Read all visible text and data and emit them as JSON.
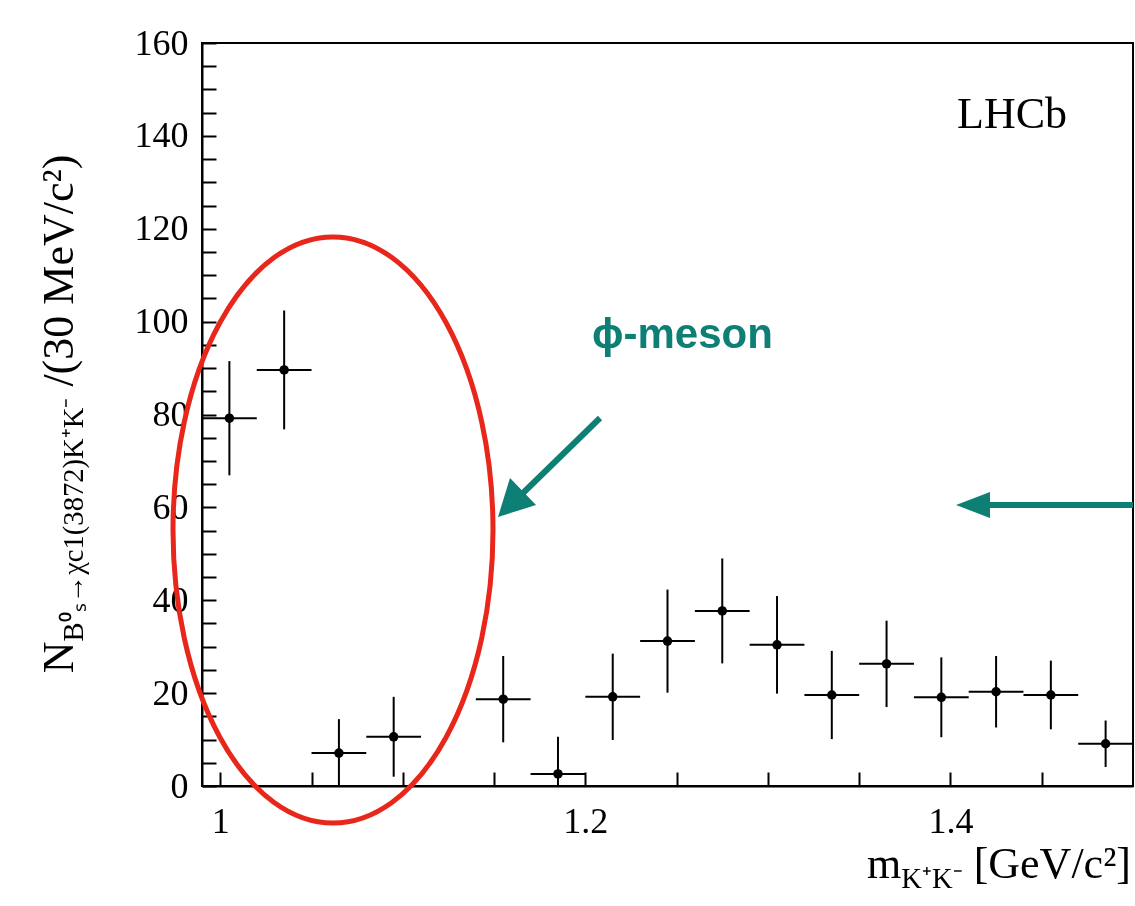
{
  "chart_data": {
    "type": "scatter",
    "xlabel": "m$_{K⁺K⁻}$  [GeV/c²]",
    "ylabel": "N$_{B⁰ₛ→χc1(3872)K⁺K⁻}$ /(30 MeV/c²)",
    "x": [
      1.005,
      1.035,
      1.065,
      1.095,
      1.155,
      1.185,
      1.215,
      1.245,
      1.275,
      1.305,
      1.335,
      1.365,
      1.395,
      1.425,
      1.455,
      1.485
    ],
    "series": [
      {
        "color": "#000000",
        "values": [
          79.2,
          89.6,
          7.1,
          10.6,
          18.7,
          2.6,
          19.2,
          31.2,
          37.7,
          30.4,
          19.6,
          26.3,
          19.1,
          20.3,
          19.6,
          9.1
        ],
        "errors": [
          12.3,
          12.8,
          [
            0,
            14.4
          ],
          8.6,
          9.3,
          [
            0,
            10.6
          ],
          9.3,
          11.1,
          11.3,
          10.5,
          9.5,
          9.3,
          8.6,
          7.7,
          7.4,
          5.0
        ],
        "xerrors": [
          0.015,
          0.015,
          0.015,
          0.015,
          0.015,
          0.015,
          0.015,
          0.015,
          0.015,
          0.015,
          0.015,
          0.015,
          0.015,
          0.015,
          0.015,
          0.015
        ]
      }
    ],
    "xlim": [
      0.99,
      1.5
    ],
    "ylim": [
      0,
      160
    ],
    "xticks": [
      1,
      {
        "value": 1.05,
        "label": null
      },
      {
        "value": 1.1,
        "label": null
      },
      {
        "value": 1.15,
        "label": null
      },
      1.2,
      {
        "value": 1.25,
        "label": null
      },
      {
        "value": 1.3,
        "label": null
      },
      {
        "value": 1.35,
        "label": null
      },
      1.4,
      {
        "value": 1.45,
        "label": null
      }
    ],
    "yticks": [
      0,
      {
        "value": 5,
        "label": null
      },
      {
        "value": 10,
        "label": null
      },
      {
        "value": 15,
        "label": null
      },
      20,
      {
        "value": 25,
        "label": null
      },
      {
        "value": 30,
        "label": null
      },
      {
        "value": 35,
        "label": null
      },
      40,
      {
        "value": 45,
        "label": null
      },
      {
        "value": 50,
        "label": null
      },
      {
        "value": 55,
        "label": null
      },
      60,
      {
        "value": 65,
        "label": null
      },
      {
        "value": 70,
        "label": null
      },
      {
        "value": 75,
        "label": null
      },
      80,
      {
        "value": 85,
        "label": null
      },
      {
        "value": 90,
        "label": null
      },
      {
        "value": 95,
        "label": null
      },
      100,
      {
        "value": 105,
        "label": null
      },
      {
        "value": 110,
        "label": null
      },
      {
        "value": 115,
        "label": null
      },
      120,
      {
        "value": 125,
        "label": null
      },
      {
        "value": 130,
        "label": null
      },
      {
        "value": 135,
        "label": null
      },
      140,
      {
        "value": 145,
        "label": null
      },
      {
        "value": 150,
        "label": null
      },
      {
        "value": 155,
        "label": null
      },
      160
    ],
    "marker": "circle",
    "annotations": [
      "LHCb",
      "ϕ-meson"
    ]
  }
}
